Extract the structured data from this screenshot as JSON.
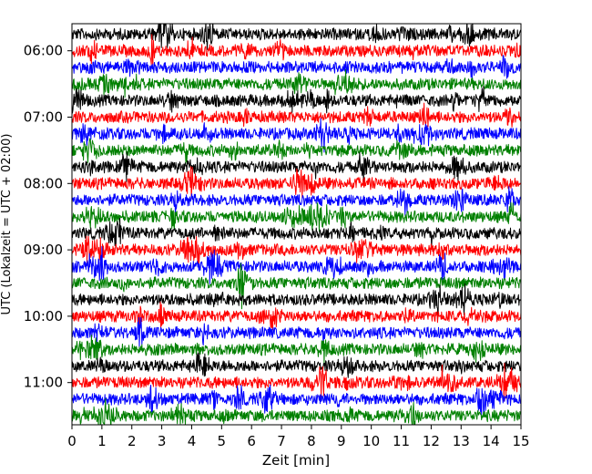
{
  "chart_data": {
    "type": "line",
    "title": "",
    "xlabel": "Zeit  [min]",
    "ylabel": "UTC (Lokalzeit = UTC + 02:00)",
    "xlim": [
      0,
      15
    ],
    "x_ticks": [
      "0",
      "1",
      "2",
      "3",
      "4",
      "5",
      "6",
      "7",
      "8",
      "9",
      "10",
      "11",
      "12",
      "13",
      "14",
      "15"
    ],
    "y_ticks": [
      "06:00",
      "07:00",
      "08:00",
      "09:00",
      "10:00",
      "11:00"
    ],
    "grid": false,
    "trace_interval_min": 15,
    "first_trace_utc": "05:45",
    "trace_count": 24,
    "series_colors": [
      "#000000",
      "#ff0000",
      "#0000ff",
      "#008000"
    ],
    "series": [
      {
        "start": "05:45",
        "color": "#000000"
      },
      {
        "start": "06:00",
        "color": "#ff0000"
      },
      {
        "start": "06:15",
        "color": "#0000ff"
      },
      {
        "start": "06:30",
        "color": "#008000"
      },
      {
        "start": "06:45",
        "color": "#000000"
      },
      {
        "start": "07:00",
        "color": "#ff0000"
      },
      {
        "start": "07:15",
        "color": "#0000ff"
      },
      {
        "start": "07:30",
        "color": "#008000"
      },
      {
        "start": "07:45",
        "color": "#000000"
      },
      {
        "start": "08:00",
        "color": "#ff0000"
      },
      {
        "start": "08:15",
        "color": "#0000ff"
      },
      {
        "start": "08:30",
        "color": "#008000"
      },
      {
        "start": "08:45",
        "color": "#000000"
      },
      {
        "start": "09:00",
        "color": "#ff0000"
      },
      {
        "start": "09:15",
        "color": "#0000ff"
      },
      {
        "start": "09:30",
        "color": "#008000"
      },
      {
        "start": "09:45",
        "color": "#000000"
      },
      {
        "start": "10:00",
        "color": "#ff0000"
      },
      {
        "start": "10:15",
        "color": "#0000ff"
      },
      {
        "start": "10:30",
        "color": "#008000"
      },
      {
        "start": "10:45",
        "color": "#000000"
      },
      {
        "start": "11:00",
        "color": "#ff0000"
      },
      {
        "start": "11:15",
        "color": "#0000ff"
      },
      {
        "start": "11:30",
        "color": "#008000"
      }
    ]
  }
}
